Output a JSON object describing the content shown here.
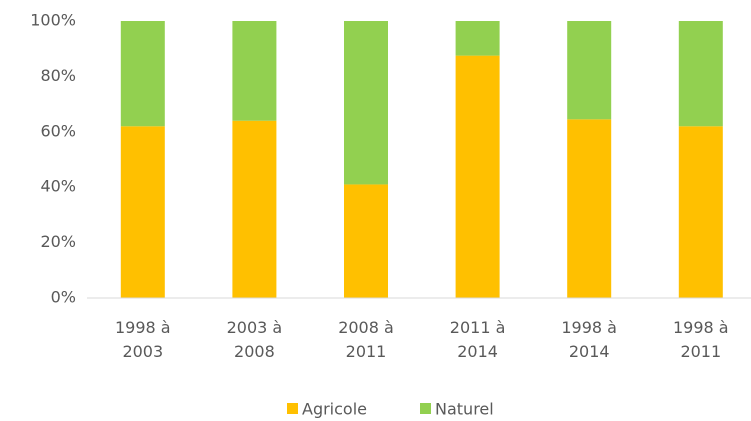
{
  "chart_data": {
    "type": "stacked_bar",
    "categories": [
      "1998 à 2003",
      "2003 à 2008",
      "2008 à 2011",
      "2011 à 2014",
      "1998 à 2014",
      "1998 à 2011"
    ],
    "series": [
      {
        "name": "Agricole",
        "color": "#ffc000",
        "values": [
          62,
          64,
          41,
          87.5,
          64.5,
          62
        ]
      },
      {
        "name": "Naturel",
        "color": "#92d050",
        "values": [
          38,
          36,
          59,
          12.5,
          35.5,
          38
        ]
      }
    ],
    "ylim": [
      0,
      100
    ],
    "yticks": [
      {
        "value": 0,
        "label": "0%"
      },
      {
        "value": 20,
        "label": "20%"
      },
      {
        "value": 40,
        "label": "40%"
      },
      {
        "value": 60,
        "label": "60%"
      },
      {
        "value": 80,
        "label": "80%"
      },
      {
        "value": 100,
        "label": "100%"
      }
    ],
    "legend": "bottom"
  }
}
